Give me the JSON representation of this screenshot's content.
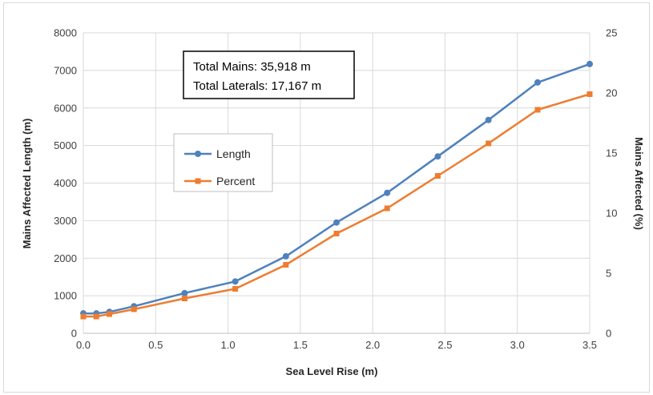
{
  "chart_data": {
    "type": "line",
    "title": "",
    "xlabel": "Sea Level Rise (m)",
    "ylabel": "Mains Affected Length (m)",
    "y2label": "Mains Affected (%)",
    "xlim": [
      0,
      3.5
    ],
    "ylim": [
      0,
      8000
    ],
    "y2lim": [
      0,
      25
    ],
    "x_ticks": [
      "0.0",
      "0.5",
      "1.0",
      "1.5",
      "2.0",
      "2.5",
      "3.0",
      "3.5"
    ],
    "y_ticks": [
      "0",
      "1000",
      "2000",
      "3000",
      "4000",
      "5000",
      "6000",
      "7000",
      "8000"
    ],
    "y2_ticks": [
      "0",
      "5",
      "10",
      "15",
      "20",
      "25"
    ],
    "grid": true,
    "legend_position": "left-center",
    "x": [
      0.0,
      0.09,
      0.18,
      0.35,
      0.7,
      1.05,
      1.4,
      1.75,
      2.1,
      2.45,
      2.8,
      3.14,
      3.5
    ],
    "series": [
      {
        "name": "Length",
        "axis": "left",
        "color": "#4f81bd",
        "marker": "circle",
        "values": [
          530,
          530,
          570,
          720,
          1070,
          1380,
          2050,
          2950,
          3740,
          4710,
          5680,
          6680,
          7170
        ]
      },
      {
        "name": "Percent",
        "axis": "right",
        "color": "#ed7d31",
        "marker": "square",
        "values": [
          1.4,
          1.4,
          1.6,
          2.0,
          2.9,
          3.7,
          5.7,
          8.3,
          10.4,
          13.1,
          15.8,
          18.6,
          19.9
        ]
      }
    ],
    "annotation": {
      "line1": "Total Mains: 35,918 m",
      "line2": "Total Laterals: 17,167 m"
    }
  }
}
